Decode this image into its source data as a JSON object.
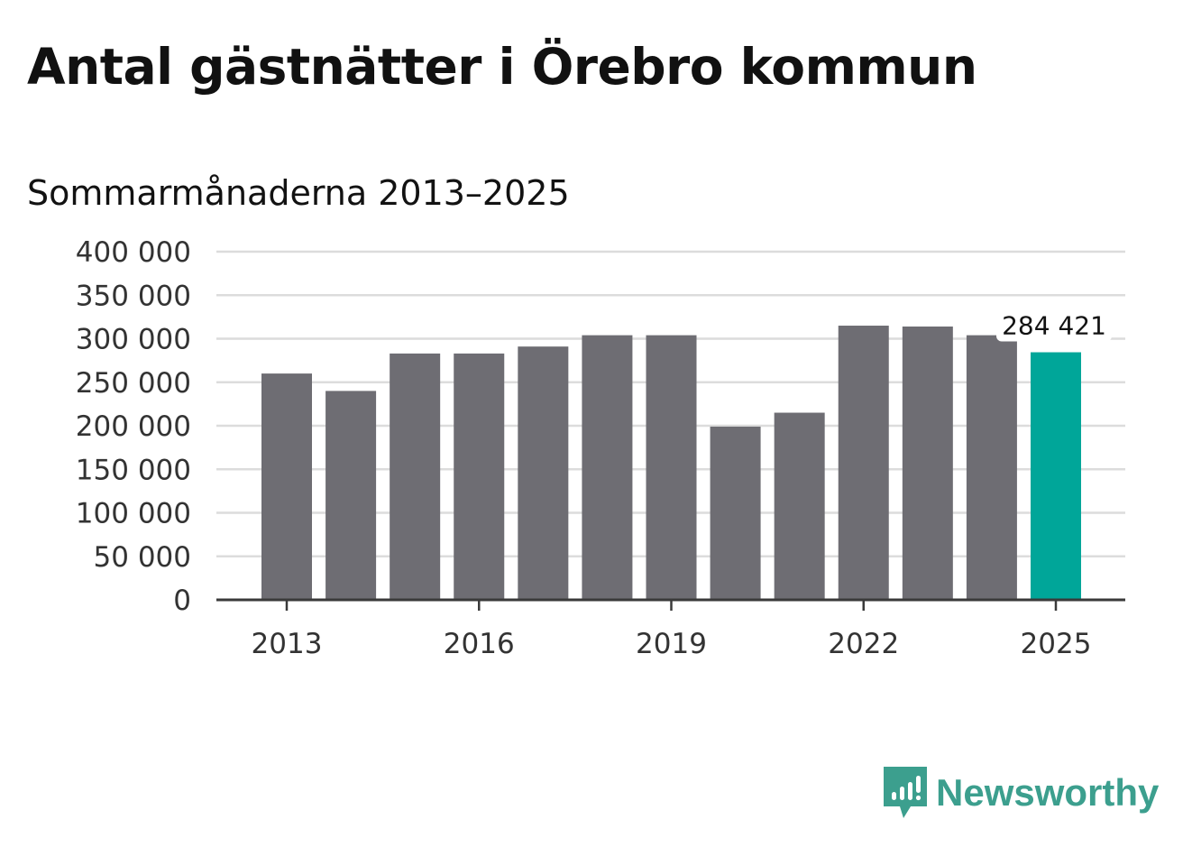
{
  "title": "Antal gästnätter i Örebro kommun",
  "subtitle": "Sommarmånaderna 2013–2025",
  "brand": {
    "name": "Newsworthy",
    "icon": "newsworthy-logo-icon",
    "color": "#3c9f8e"
  },
  "chart_data": {
    "type": "bar",
    "categories": [
      "2013",
      "2014",
      "2015",
      "2016",
      "2017",
      "2018",
      "2019",
      "2020",
      "2021",
      "2022",
      "2023",
      "2024",
      "2025"
    ],
    "values": [
      260000,
      240000,
      283000,
      283000,
      291000,
      304000,
      304000,
      199000,
      215000,
      315000,
      314000,
      304000,
      284421
    ],
    "ylim": [
      0,
      400000
    ],
    "yticks": [
      0,
      50000,
      100000,
      150000,
      200000,
      250000,
      300000,
      350000,
      400000
    ],
    "ytick_labels": [
      "0",
      "50 000",
      "100 000",
      "150 000",
      "200 000",
      "250 000",
      "300 000",
      "350 000",
      "400 000"
    ],
    "xtick_labels": [
      "2013",
      "2016",
      "2019",
      "2022",
      "2025"
    ],
    "grid": true,
    "highlight_index": 12,
    "highlight_label": "284 421",
    "bar_color": "#6e6d73",
    "highlight_color": "#00a699",
    "grid_color": "#dcdcdc",
    "axis_color": "#3a3a3a"
  }
}
